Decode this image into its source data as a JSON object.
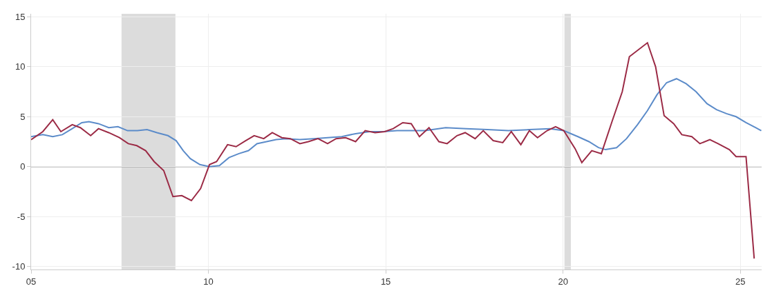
{
  "chart_data": {
    "type": "line",
    "xlim": [
      2005,
      2025.6
    ],
    "ylim": [
      -10.3,
      15.3
    ],
    "xticks": [
      {
        "value": 2005,
        "label": "05"
      },
      {
        "value": 2010,
        "label": "10"
      },
      {
        "value": 2015,
        "label": "15"
      },
      {
        "value": 2020,
        "label": "20"
      },
      {
        "value": 2025,
        "label": "25"
      }
    ],
    "yticks": [
      -10,
      -5,
      0,
      5,
      10,
      15
    ],
    "grid": true,
    "bands": [
      {
        "axis": "x",
        "from": 2007.55,
        "to": 2009.07,
        "color": "#dcdcdc"
      },
      {
        "axis": "x",
        "from": 2020.04,
        "to": 2020.22,
        "color": "#dcdcdc"
      }
    ],
    "ref_lines": [
      {
        "axis": "y",
        "value": 0,
        "color": "#8c8c8c"
      }
    ],
    "series": [
      {
        "color": "#5b8bc9",
        "x": [
          2005,
          2005.33,
          2005.61,
          2005.88,
          2006.16,
          2006.43,
          2006.63,
          2006.9,
          2007.19,
          2007.45,
          2007.72,
          2008.0,
          2008.27,
          2008.55,
          2008.86,
          2009.09,
          2009.29,
          2009.49,
          2009.76,
          2010.03,
          2010.31,
          2010.58,
          2010.86,
          2011.13,
          2011.37,
          2011.64,
          2011.91,
          2012.19,
          2012.58,
          2012.97,
          2013.36,
          2013.76,
          2014.15,
          2014.54,
          2014.93,
          2015.32,
          2015.72,
          2016.11,
          2016.69,
          2017.28,
          2017.87,
          2018.46,
          2019.05,
          2019.63,
          2020.02,
          2020.42,
          2020.73,
          2021.0,
          2021.2,
          2021.51,
          2021.79,
          2022.1,
          2022.38,
          2022.65,
          2022.92,
          2023.2,
          2023.47,
          2023.75,
          2024.06,
          2024.33,
          2024.61,
          2024.88,
          2025.16,
          2025.43,
          2025.59
        ],
        "values": [
          3.0,
          3.2,
          3.0,
          3.2,
          3.8,
          4.4,
          4.5,
          4.3,
          3.9,
          4.0,
          3.6,
          3.6,
          3.7,
          3.4,
          3.1,
          2.6,
          1.6,
          0.8,
          0.2,
          0.0,
          0.1,
          0.9,
          1.3,
          1.6,
          2.3,
          2.5,
          2.7,
          2.8,
          2.7,
          2.8,
          2.9,
          3.0,
          3.3,
          3.5,
          3.5,
          3.6,
          3.6,
          3.6,
          3.9,
          3.8,
          3.7,
          3.6,
          3.7,
          3.8,
          3.6,
          3.0,
          2.5,
          1.9,
          1.7,
          1.9,
          2.8,
          4.2,
          5.6,
          7.2,
          8.4,
          8.8,
          8.3,
          7.5,
          6.3,
          5.7,
          5.3,
          5.0,
          4.4,
          3.9,
          3.6
        ]
      },
      {
        "color": "#9b2a45",
        "x": [
          2005,
          2005.33,
          2005.61,
          2005.84,
          2006.16,
          2006.39,
          2006.68,
          2006.9,
          2007.19,
          2007.49,
          2007.74,
          2007.98,
          2008.23,
          2008.47,
          2008.74,
          2009.0,
          2009.25,
          2009.52,
          2009.78,
          2010.03,
          2010.23,
          2010.54,
          2010.78,
          2011.05,
          2011.29,
          2011.56,
          2011.8,
          2012.07,
          2012.31,
          2012.58,
          2012.82,
          2013.09,
          2013.36,
          2013.6,
          2013.87,
          2014.15,
          2014.42,
          2014.7,
          2014.97,
          2015.21,
          2015.48,
          2015.72,
          2015.95,
          2016.22,
          2016.5,
          2016.73,
          2017.01,
          2017.24,
          2017.52,
          2017.75,
          2018.03,
          2018.3,
          2018.54,
          2018.81,
          2019.05,
          2019.28,
          2019.55,
          2019.79,
          2020.02,
          2020.34,
          2020.53,
          2020.81,
          2021.08,
          2021.38,
          2021.67,
          2021.87,
          2022.38,
          2022.61,
          2022.85,
          2023.12,
          2023.35,
          2023.63,
          2023.86,
          2024.14,
          2024.37,
          2024.69,
          2024.88,
          2025.16,
          2025.39
        ],
        "values": [
          2.7,
          3.5,
          4.7,
          3.5,
          4.2,
          3.9,
          3.1,
          3.8,
          3.4,
          2.9,
          2.3,
          2.1,
          1.6,
          0.5,
          -0.4,
          -3.0,
          -2.9,
          -3.4,
          -2.2,
          0.2,
          0.5,
          2.2,
          2.0,
          2.6,
          3.1,
          2.8,
          3.4,
          2.9,
          2.8,
          2.3,
          2.5,
          2.8,
          2.3,
          2.8,
          2.9,
          2.5,
          3.6,
          3.4,
          3.5,
          3.8,
          4.4,
          4.3,
          3.0,
          3.9,
          2.5,
          2.3,
          3.1,
          3.4,
          2.8,
          3.6,
          2.6,
          2.4,
          3.5,
          2.2,
          3.6,
          2.9,
          3.6,
          4.0,
          3.6,
          1.8,
          0.4,
          1.6,
          1.3,
          4.5,
          7.5,
          11.0,
          12.4,
          10.0,
          5.1,
          4.3,
          3.2,
          3.0,
          2.3,
          2.7,
          2.3,
          1.7,
          1.0,
          1.0,
          -9.2
        ]
      }
    ]
  }
}
